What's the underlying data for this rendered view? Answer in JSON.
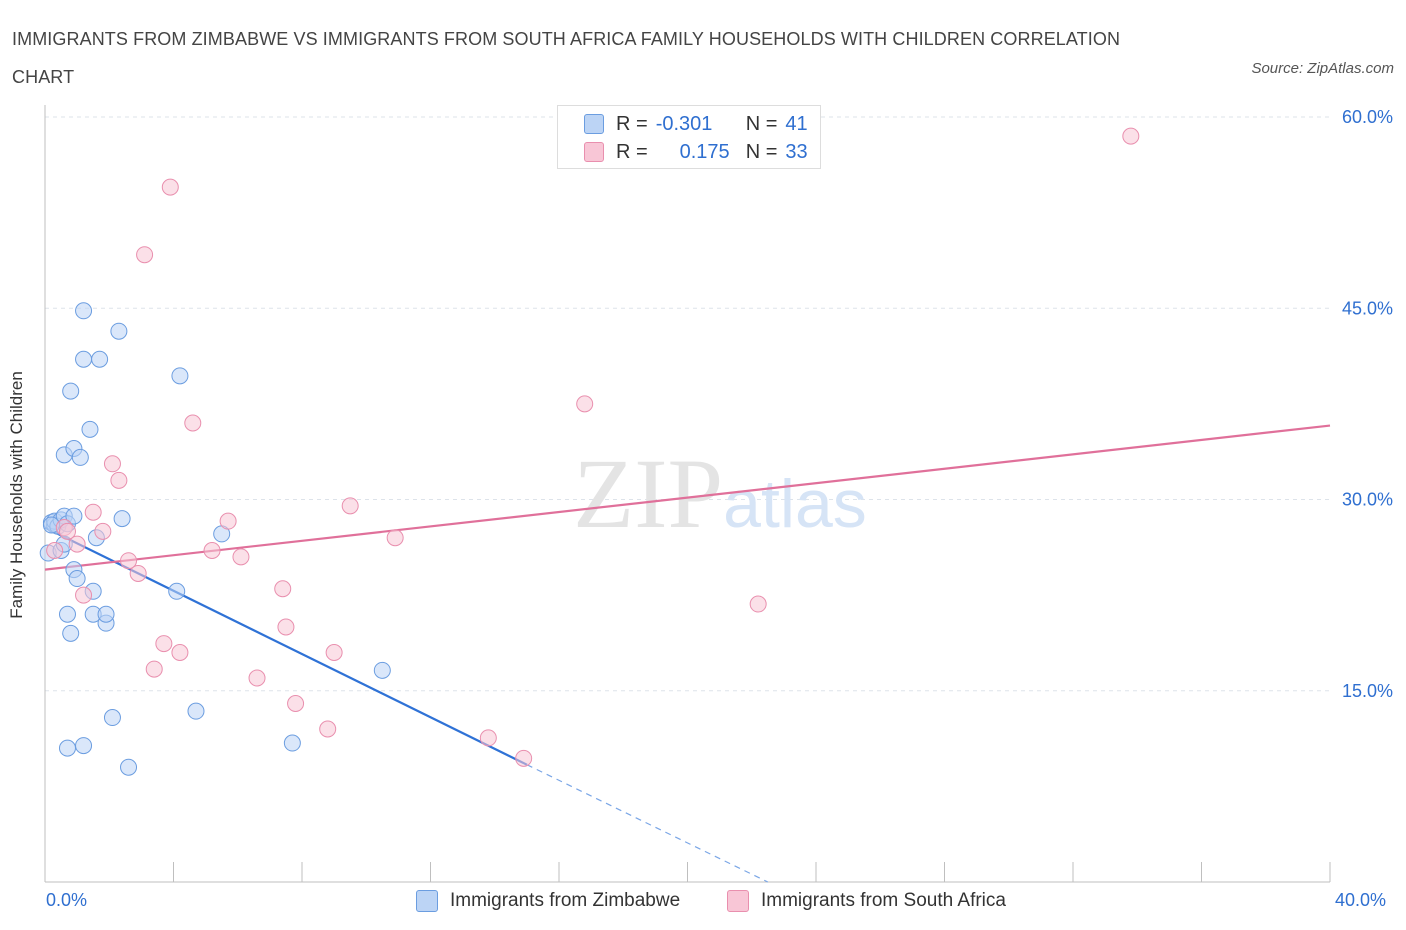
{
  "chart_data": {
    "type": "scatter",
    "title": "IMMIGRANTS FROM ZIMBABWE VS IMMIGRANTS FROM SOUTH AFRICA FAMILY HOUSEHOLDS WITH CHILDREN CORRELATION CHART",
    "source": "Source: ZipAtlas.com",
    "watermark": "ZIPatlas",
    "xlabel": "",
    "ylabel": "Family Households with Children",
    "xlim": [
      0,
      40
    ],
    "ylim": [
      0,
      60
    ],
    "x_tick_labels": [
      "0.0%",
      "40.0%"
    ],
    "y_ticks": [
      15,
      30,
      45,
      60
    ],
    "y_tick_labels": [
      "15.0%",
      "30.0%",
      "45.0%",
      "60.0%"
    ],
    "grid": true,
    "legend": [
      {
        "name": "Immigrants from Zimbabwe",
        "r_label": "R =",
        "r_value": "-0.301",
        "n_label": "N =",
        "n_value": "41"
      },
      {
        "name": "Immigrants from South Africa",
        "r_label": "R =",
        "r_value": "0.175",
        "n_label": "N =",
        "n_value": "33"
      }
    ],
    "series": [
      {
        "name": "Immigrants from Zimbabwe",
        "color": "#6b9de0",
        "fill": "#bcd4f5",
        "trend": {
          "x0": 0,
          "y0": 27.8,
          "x1": 15.0,
          "y1": 9.2,
          "dash_to_x": 22.5,
          "dash_to_y": 0
        },
        "points": [
          [
            0.1,
            25.8
          ],
          [
            0.2,
            28.2
          ],
          [
            0.3,
            28.0
          ],
          [
            0.3,
            28.3
          ],
          [
            0.4,
            27.9
          ],
          [
            0.5,
            28.4
          ],
          [
            0.5,
            26.0
          ],
          [
            0.6,
            28.7
          ],
          [
            0.6,
            26.5
          ],
          [
            0.6,
            33.5
          ],
          [
            0.7,
            28.1
          ],
          [
            0.7,
            10.5
          ],
          [
            0.7,
            21.0
          ],
          [
            0.8,
            38.5
          ],
          [
            0.8,
            19.5
          ],
          [
            0.9,
            24.5
          ],
          [
            0.9,
            34.0
          ],
          [
            0.9,
            28.7
          ],
          [
            1.0,
            23.8
          ],
          [
            1.1,
            33.3
          ],
          [
            1.2,
            44.8
          ],
          [
            1.2,
            41.0
          ],
          [
            1.2,
            10.7
          ],
          [
            1.4,
            35.5
          ],
          [
            1.5,
            22.8
          ],
          [
            1.5,
            21.0
          ],
          [
            1.6,
            27.0
          ],
          [
            1.7,
            41.0
          ],
          [
            1.9,
            20.3
          ],
          [
            1.9,
            21.0
          ],
          [
            2.1,
            12.9
          ],
          [
            2.3,
            43.2
          ],
          [
            2.4,
            28.5
          ],
          [
            2.6,
            9.0
          ],
          [
            4.1,
            22.8
          ],
          [
            4.2,
            39.7
          ],
          [
            4.7,
            13.4
          ],
          [
            5.5,
            27.3
          ],
          [
            7.7,
            10.9
          ],
          [
            10.5,
            16.6
          ],
          [
            0.2,
            28.0
          ]
        ]
      },
      {
        "name": "Immigrants from South Africa",
        "color": "#e98fae",
        "fill": "#f8c6d6",
        "trend": {
          "x0": 0,
          "y0": 24.5,
          "x1": 40,
          "y1": 35.8
        },
        "points": [
          [
            0.3,
            26.0
          ],
          [
            0.6,
            27.8
          ],
          [
            0.7,
            27.5
          ],
          [
            1.0,
            26.5
          ],
          [
            1.2,
            22.5
          ],
          [
            1.5,
            29.0
          ],
          [
            1.8,
            27.5
          ],
          [
            2.1,
            32.8
          ],
          [
            2.3,
            31.5
          ],
          [
            2.6,
            25.2
          ],
          [
            2.9,
            24.2
          ],
          [
            3.1,
            49.2
          ],
          [
            3.4,
            16.7
          ],
          [
            3.7,
            18.7
          ],
          [
            3.9,
            54.5
          ],
          [
            4.2,
            18.0
          ],
          [
            4.6,
            36.0
          ],
          [
            5.2,
            26.0
          ],
          [
            5.7,
            28.3
          ],
          [
            6.1,
            25.5
          ],
          [
            6.6,
            16.0
          ],
          [
            7.4,
            23.0
          ],
          [
            7.5,
            20.0
          ],
          [
            7.8,
            14.0
          ],
          [
            8.8,
            12.0
          ],
          [
            9.0,
            18.0
          ],
          [
            9.5,
            29.5
          ],
          [
            10.9,
            27.0
          ],
          [
            13.8,
            11.3
          ],
          [
            14.9,
            9.7
          ],
          [
            16.8,
            37.5
          ],
          [
            22.2,
            21.8
          ],
          [
            33.8,
            58.5
          ]
        ]
      }
    ]
  }
}
